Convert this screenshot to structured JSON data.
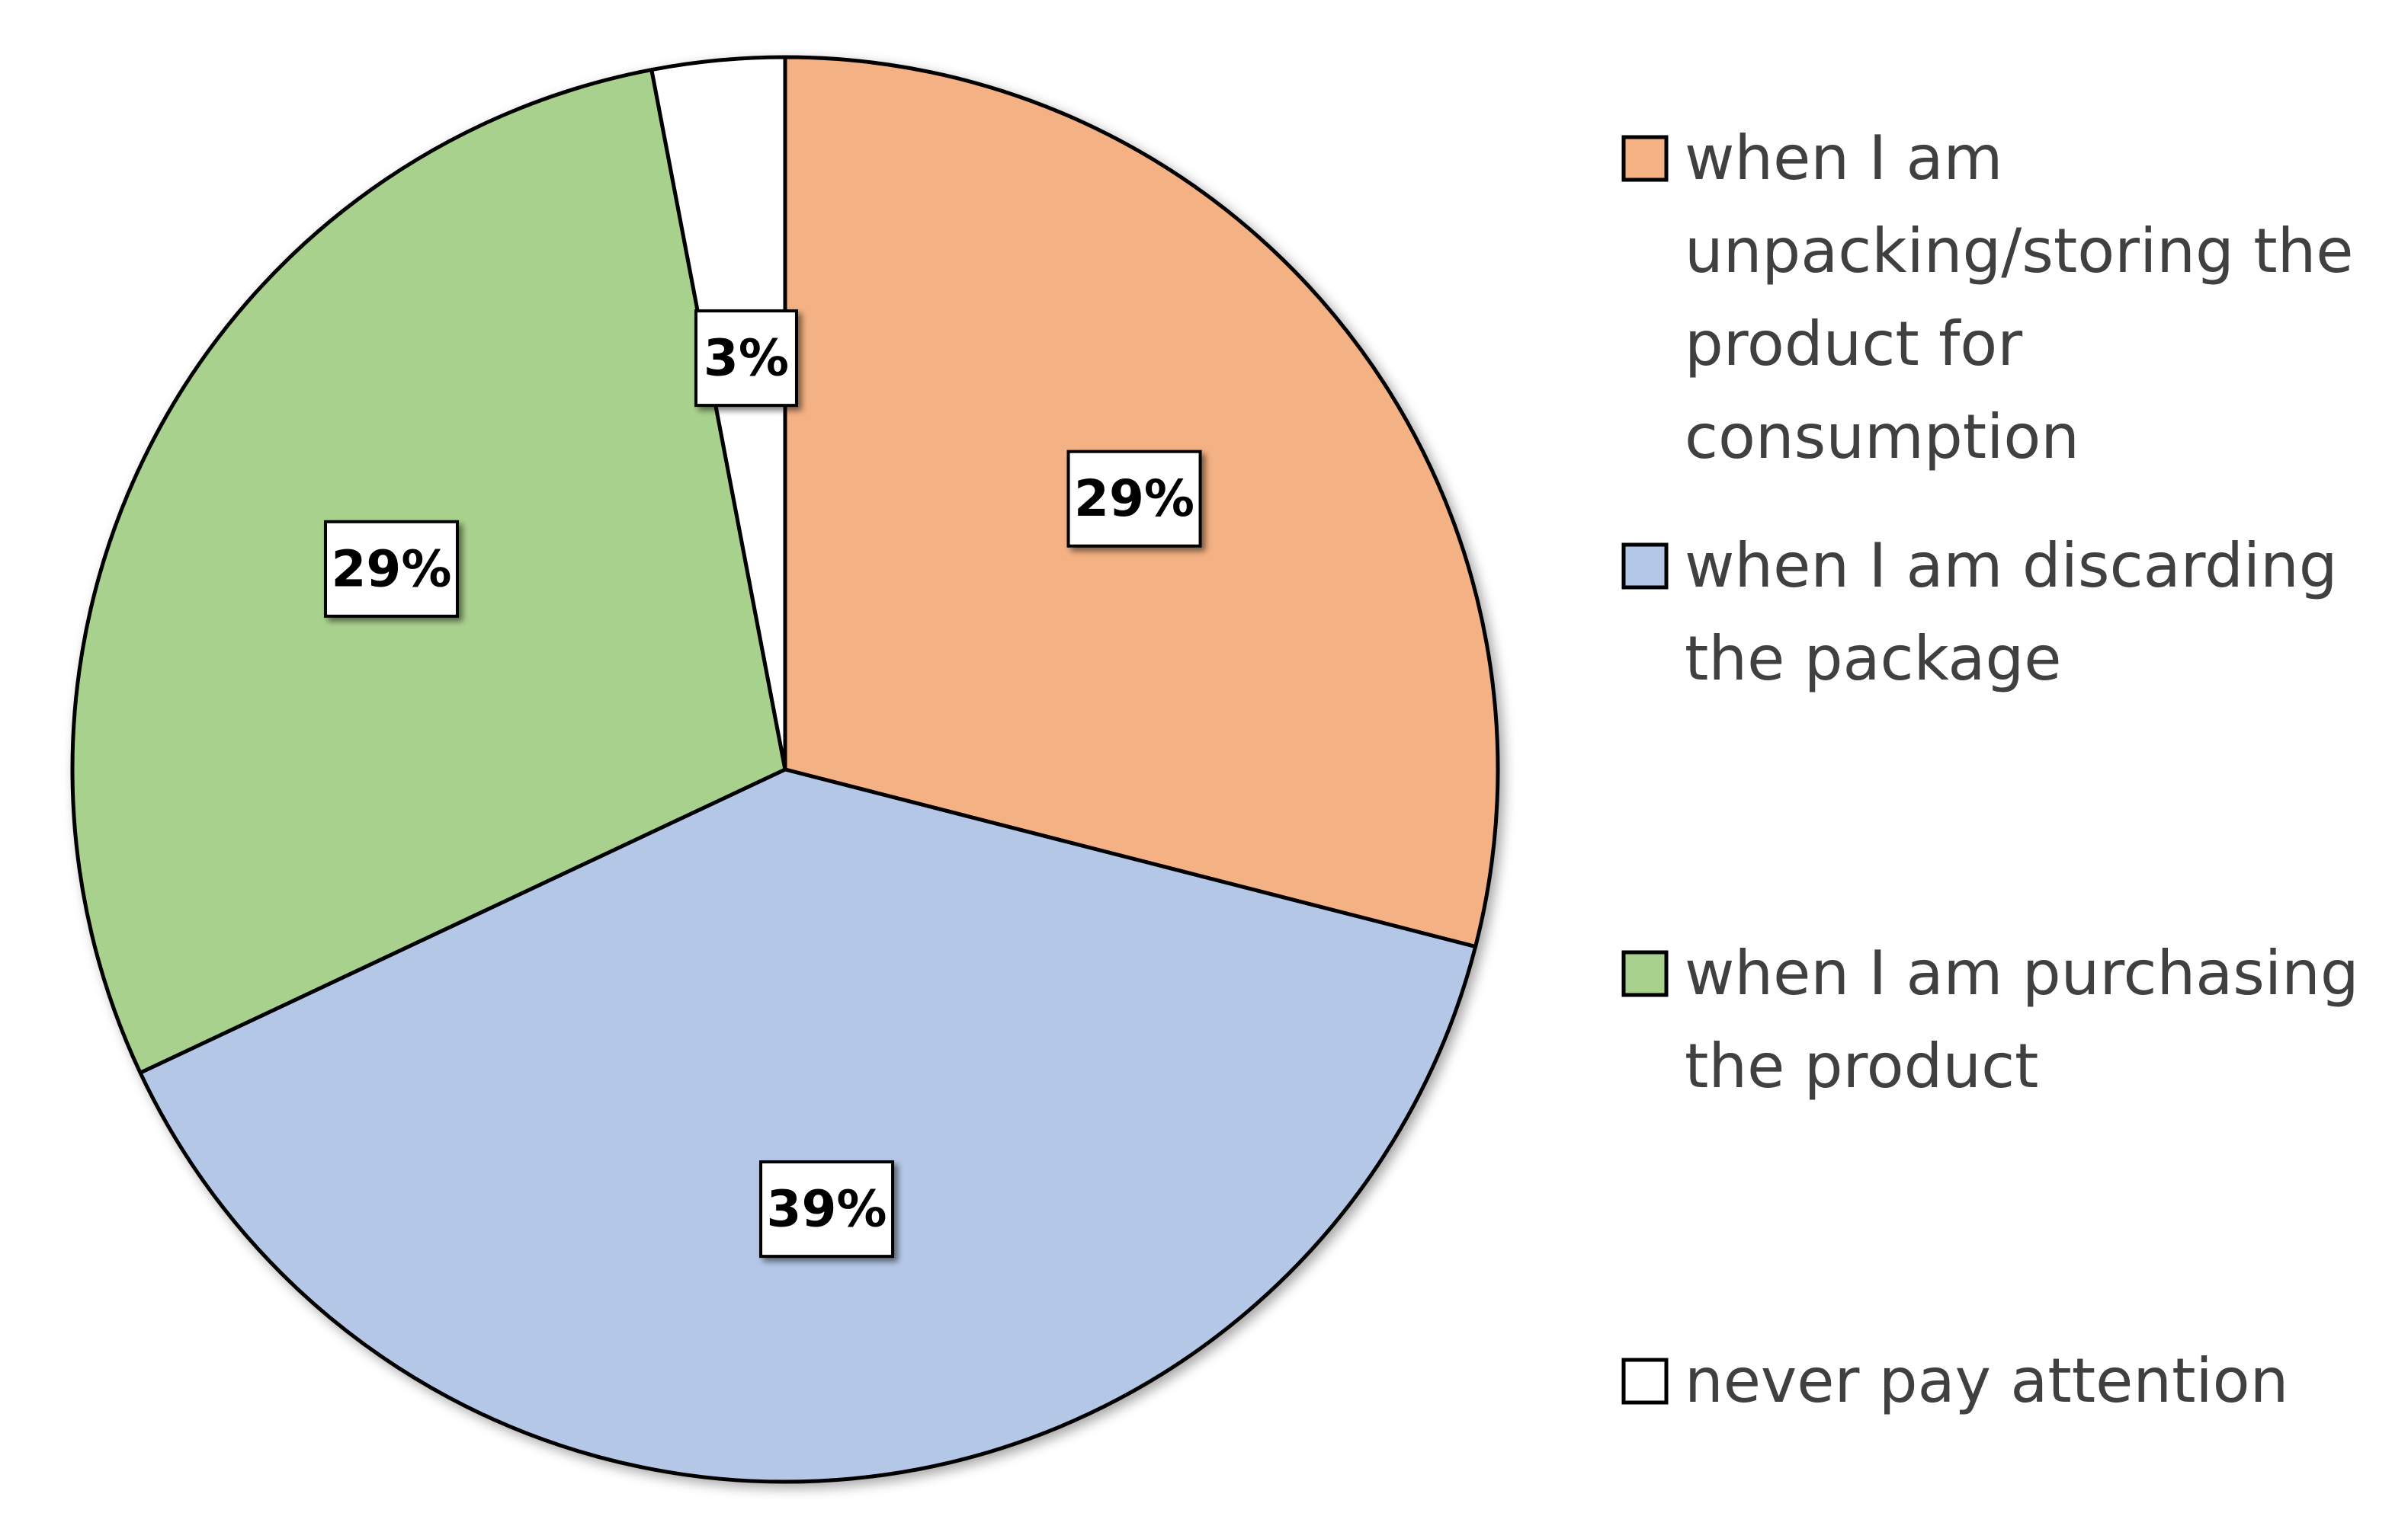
{
  "chart_data": {
    "type": "pie",
    "title": "",
    "start_angle_deg": 0,
    "direction": "clockwise",
    "legend_position": "right",
    "slices": [
      {
        "label": "when I am unpacking/storing the product for consumption",
        "legend_lines": [
          "when I am",
          "unpacking/storing the",
          "product for",
          "consumption"
        ],
        "value": 29,
        "data_label": "29%",
        "color": "#F4B183"
      },
      {
        "label": "when I am discarding the package",
        "legend_lines": [
          "when I am discarding",
          "the package"
        ],
        "value": 39,
        "data_label": "39%",
        "color": "#B4C7E7"
      },
      {
        "label": "when I am purchasing the product",
        "legend_lines": [
          "when I am purchasing",
          "the product"
        ],
        "value": 29,
        "data_label": "29%",
        "color": "#A9D18E"
      },
      {
        "label": "never pay attention",
        "legend_lines": [
          "never pay attention"
        ],
        "value": 3,
        "data_label": "3%",
        "color": "#FFFFFF"
      }
    ]
  }
}
